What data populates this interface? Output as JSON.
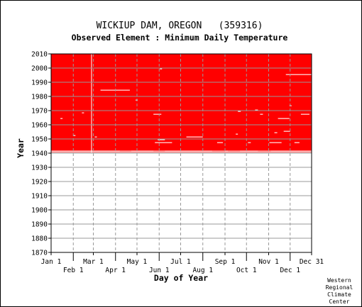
{
  "chart_data": {
    "type": "heatmap",
    "title": "WICKIUP DAM, OREGON   (359316)",
    "subtitle": "Observed Element : Minimum Daily Temperature",
    "xlabel": "Day of Year",
    "ylabel": "Year",
    "x_range": [
      1,
      365
    ],
    "ylim": [
      1870,
      2010
    ],
    "y_ticks": [
      1870,
      1880,
      1890,
      1900,
      1910,
      1920,
      1930,
      1940,
      1950,
      1960,
      1970,
      1980,
      1990,
      2000,
      2010
    ],
    "x_ticks": [
      {
        "label": "Jan 1",
        "day": 1,
        "row": "upper"
      },
      {
        "label": "Feb 1",
        "day": 32,
        "row": "lower"
      },
      {
        "label": "Mar 1",
        "day": 60,
        "row": "upper"
      },
      {
        "label": "Apr 1",
        "day": 91,
        "row": "lower"
      },
      {
        "label": "May 1",
        "day": 121,
        "row": "upper"
      },
      {
        "label": "Jun 1",
        "day": 152,
        "row": "lower"
      },
      {
        "label": "Jul 1",
        "day": 182,
        "row": "upper"
      },
      {
        "label": "Aug 1",
        "day": 213,
        "row": "lower"
      },
      {
        "label": "Sep 1",
        "day": 244,
        "row": "upper"
      },
      {
        "label": "Oct 1",
        "day": 274,
        "row": "lower"
      },
      {
        "label": "Nov 1",
        "day": 305,
        "row": "upper"
      },
      {
        "label": "Dec 1",
        "day": 335,
        "row": "lower"
      },
      {
        "label": "Dec 31",
        "day": 365,
        "row": "upper"
      }
    ],
    "grid": true,
    "colors": {
      "observed": "#ff0000",
      "missing": "#ffffff",
      "background": "#ffffff",
      "grid": "#999999"
    },
    "observed_region": {
      "year_start": 1940,
      "year_end": 2010,
      "day_start": 1,
      "day_end": 365
    },
    "missing_segments": [
      {
        "year": 1941,
        "day_start": 1,
        "day_end": 365
      },
      {
        "year": 1940,
        "day_start": 1,
        "day_end": 365
      },
      {
        "year": 1941,
        "day_start": 1,
        "day_end": 97
      },
      {
        "year": 1941,
        "day_start": 113,
        "day_end": 144
      },
      {
        "year": 1941,
        "day_start": 160,
        "day_end": 226
      },
      {
        "year": 1941,
        "day_start": 244,
        "day_end": 248
      },
      {
        "year": 1941,
        "day_start": 265,
        "day_end": 290
      },
      {
        "year": 1941,
        "day_start": 308,
        "day_end": 365
      },
      {
        "year": 1947,
        "day_start": 146,
        "day_end": 170
      },
      {
        "year": 1947,
        "day_start": 233,
        "day_end": 241
      },
      {
        "year": 1947,
        "day_start": 276,
        "day_end": 280
      },
      {
        "year": 1947,
        "day_start": 306,
        "day_end": 323
      },
      {
        "year": 1947,
        "day_start": 341,
        "day_end": 348
      },
      {
        "year": 1949,
        "day_start": 150,
        "day_end": 160
      },
      {
        "year": 1951,
        "day_start": 190,
        "day_end": 213
      },
      {
        "year": 1951,
        "day_start": 62,
        "day_end": 65
      },
      {
        "year": 1952,
        "day_start": 32,
        "day_end": 35
      },
      {
        "year": 1953,
        "day_start": 259,
        "day_end": 262
      },
      {
        "year": 1954,
        "day_start": 313,
        "day_end": 317
      },
      {
        "year": 1955,
        "day_start": 326,
        "day_end": 335
      },
      {
        "year": 1964,
        "day_start": 318,
        "day_end": 334
      },
      {
        "year": 1964,
        "day_start": 14,
        "day_end": 17
      },
      {
        "year": 1967,
        "day_start": 293,
        "day_end": 297
      },
      {
        "year": 1967,
        "day_start": 144,
        "day_end": 155
      },
      {
        "year": 1967,
        "day_start": 350,
        "day_end": 362
      },
      {
        "year": 1968,
        "day_start": 44,
        "day_end": 47
      },
      {
        "year": 1969,
        "day_start": 262,
        "day_end": 266
      },
      {
        "year": 1970,
        "day_start": 286,
        "day_end": 290
      },
      {
        "year": 1973,
        "day_start": 334,
        "day_end": 337
      },
      {
        "year": 1977,
        "day_start": 119,
        "day_end": 122
      },
      {
        "year": 1984,
        "day_start": 70,
        "day_end": 111
      },
      {
        "year": 1995,
        "day_start": 329,
        "day_end": 365
      },
      {
        "year": 1999,
        "day_start": 153,
        "day_end": 156
      }
    ],
    "missing_column": {
      "day": 57,
      "year_start": 1940,
      "year_end": 2010
    }
  },
  "credit": [
    "Western",
    "Regional",
    "Climate",
    "Center"
  ]
}
